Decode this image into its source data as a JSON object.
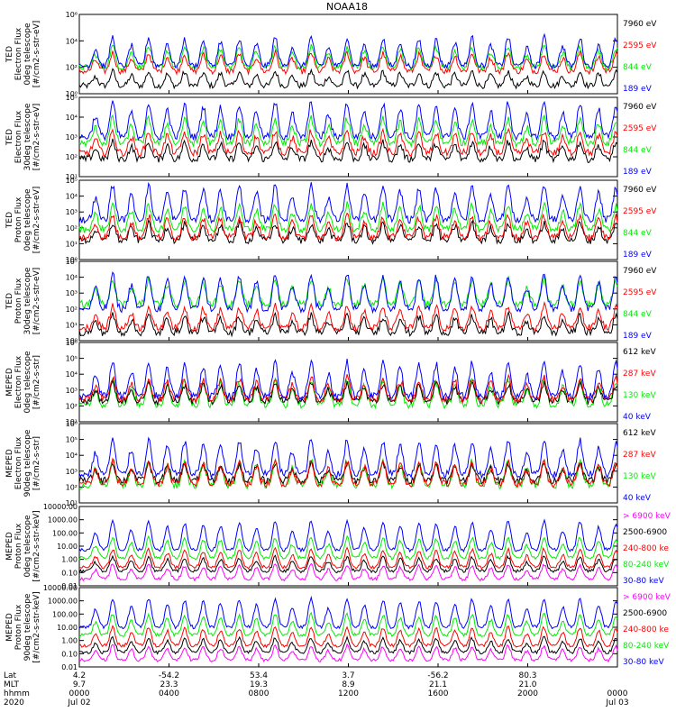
{
  "title": "NOAA18",
  "colors": {
    "black": "#000000",
    "blue": "#0000ff",
    "red": "#ff0000",
    "green": "#00ee00",
    "magenta": "#ff00ff"
  },
  "chart_data": [
    {
      "type": "line",
      "panel": "TED electron flux, 0 deg telescope",
      "ylabel": [
        "TED",
        "Electron Flux",
        "0deg telescope",
        "[#/cm2-s-str-eV]"
      ],
      "scale": "log",
      "ylim": [
        1,
        1000000
      ],
      "yticks": [
        "10⁰",
        "10²",
        "10⁴",
        "10⁶"
      ],
      "legend": [
        {
          "label": "7960 eV",
          "color": "black"
        },
        {
          "label": "2595 eV",
          "color": "red"
        },
        {
          "label": "844 eV",
          "color": "green"
        },
        {
          "label": "189 eV",
          "color": "blue"
        }
      ],
      "series_levels_log10": {
        "blue": 2.1,
        "green": 2.0,
        "red": 1.7,
        "black": 0.6
      }
    },
    {
      "type": "line",
      "panel": "TED electron flux, 30 deg telescope",
      "ylabel": [
        "TED",
        "Electron Flux",
        "30deg telescope",
        "[#/cm2-s-str-eV]"
      ],
      "scale": "log",
      "ylim": [
        1,
        100000
      ],
      "yticks": [
        "10¹",
        "10²",
        "10³",
        "10⁴",
        "10⁵"
      ],
      "legend": [
        {
          "label": "7960 eV",
          "color": "black"
        },
        {
          "label": "2595 eV",
          "color": "red"
        },
        {
          "label": "844 eV",
          "color": "green"
        },
        {
          "label": "189 eV",
          "color": "blue"
        }
      ],
      "series_levels_log10": {
        "blue": 2.5,
        "green": 2.1,
        "red": 1.5,
        "black": 1.1
      }
    },
    {
      "type": "line",
      "panel": "TED proton flux, 0 deg telescope",
      "ylabel": [
        "TED",
        "Proton Flux",
        "0deg telescope",
        "[#/cm2-s-str-eV]"
      ],
      "scale": "log",
      "ylim": [
        1,
        100000
      ],
      "yticks": [
        "10⁰",
        "10¹",
        "10²",
        "10³",
        "10⁴",
        "10⁵"
      ],
      "legend": [
        {
          "label": "7960 eV",
          "color": "black"
        },
        {
          "label": "2595 eV",
          "color": "red"
        },
        {
          "label": "844 eV",
          "color": "green"
        },
        {
          "label": "189 eV",
          "color": "blue"
        }
      ],
      "series_levels_log10": {
        "blue": 2.5,
        "green": 1.9,
        "red": 1.4,
        "black": 1.2
      }
    },
    {
      "type": "line",
      "panel": "TED proton flux, 30 deg telescope",
      "ylabel": [
        "TED",
        "Proton Flux",
        "30deg telescope",
        "[#/cm2-s-str-eV]"
      ],
      "scale": "log",
      "ylim": [
        1,
        100000
      ],
      "yticks": [
        "10⁰",
        "10¹",
        "10²",
        "10³",
        "10⁴",
        "10⁵"
      ],
      "legend": [
        {
          "label": "7960 eV",
          "color": "black"
        },
        {
          "label": "2595 eV",
          "color": "red"
        },
        {
          "label": "844 eV",
          "color": "green"
        },
        {
          "label": "189 eV",
          "color": "blue"
        }
      ],
      "series_levels_log10": {
        "blue": 2.0,
        "green": 2.3,
        "red": 0.8,
        "black": 0.5
      }
    },
    {
      "type": "line",
      "panel": "MEPED electron flux, 0 deg telescope",
      "ylabel": [
        "MEPED",
        "Electron Flux",
        "0deg telescope",
        "[#/cm2-s-str]"
      ],
      "scale": "log",
      "ylim": [
        10,
        1000000
      ],
      "yticks": [
        "10¹",
        "10²",
        "10³",
        "10⁴",
        "10⁵",
        "10⁶"
      ],
      "legend": [
        {
          "label": "612 keV",
          "color": "black"
        },
        {
          "label": "287 keV",
          "color": "red"
        },
        {
          "label": "130 keV",
          "color": "green"
        },
        {
          "label": "40 keV",
          "color": "blue"
        }
      ],
      "series_levels_log10": {
        "blue": 2.6,
        "red": 2.4,
        "black": 2.3,
        "green": 2.05
      }
    },
    {
      "type": "line",
      "panel": "MEPED electron flux, 90 deg telescope",
      "ylabel": [
        "MEPED",
        "Electron Flux",
        "90deg telescope",
        "[#/cm2-s-str]"
      ],
      "scale": "log",
      "ylim": [
        10,
        1000000
      ],
      "yticks": [
        "10¹",
        "10²",
        "10³",
        "10⁴",
        "10⁵",
        "10⁶"
      ],
      "legend": [
        {
          "label": "612 keV",
          "color": "black"
        },
        {
          "label": "287 keV",
          "color": "red"
        },
        {
          "label": "130 keV",
          "color": "green"
        },
        {
          "label": "40 keV",
          "color": "blue"
        }
      ],
      "series_levels_log10": {
        "blue": 2.8,
        "red": 2.2,
        "black": 2.4,
        "green": 2.1
      }
    },
    {
      "type": "line",
      "panel": "MEPED proton flux, 0 deg telescope",
      "ylabel": [
        "MEPED",
        "Proton Flux",
        "0deg telescope",
        "[#/cm2-s-str-keV]"
      ],
      "scale": "log",
      "ylim": [
        0.01,
        10000
      ],
      "yticks": [
        "0.01",
        "0.10",
        "1.00",
        "10.00",
        "100.00",
        "1000.00",
        "10000.00"
      ],
      "legend": [
        {
          "label": "> 6900 keV",
          "color": "magenta"
        },
        {
          "label": "2500-6900",
          "color": "black"
        },
        {
          "label": "240-800 ke",
          "color": "red"
        },
        {
          "label": "80-240 keV",
          "color": "green"
        },
        {
          "label": "30-80 keV",
          "color": "blue"
        }
      ],
      "series_levels_log10": {
        "blue": 0.7,
        "green": 0.1,
        "red": -0.6,
        "black": -0.9,
        "magenta": -1.5
      }
    },
    {
      "type": "line",
      "panel": "MEPED proton flux, 90 deg telescope",
      "ylabel": [
        "MEPED",
        "Proton Flux",
        "90deg telescope",
        "[#/cm2-s-str-keV]"
      ],
      "scale": "log",
      "ylim": [
        0.01,
        10000
      ],
      "yticks": [
        "0.01",
        "0.10",
        "1.00",
        "10.00",
        "100.00",
        "1000.00",
        "10000.00"
      ],
      "legend": [
        {
          "label": "> 6900 keV",
          "color": "magenta"
        },
        {
          "label": "2500-6900",
          "color": "black"
        },
        {
          "label": "240-800 ke",
          "color": "red"
        },
        {
          "label": "80-240 keV",
          "color": "green"
        },
        {
          "label": "30-80 keV",
          "color": "blue"
        }
      ],
      "series_levels_log10": {
        "blue": 1.0,
        "green": 0.4,
        "red": -0.4,
        "black": -0.9,
        "magenta": -1.5
      }
    }
  ],
  "time_axis": {
    "row_labels": [
      "Lat",
      "MLT",
      "hhmm",
      "2020"
    ],
    "ticks": [
      {
        "hour": 0,
        "lat": "4.2",
        "mlt": "9.7",
        "hhmm": "0000",
        "date": "Jul 02"
      },
      {
        "hour": 4,
        "lat": "-54.2",
        "mlt": "23.3",
        "hhmm": "0400",
        "date": ""
      },
      {
        "hour": 8,
        "lat": "53.4",
        "mlt": "19.3",
        "hhmm": "0800",
        "date": ""
      },
      {
        "hour": 12,
        "lat": "3.7",
        "mlt": "8.9",
        "hhmm": "1200",
        "date": ""
      },
      {
        "hour": 16,
        "lat": "-56.2",
        "mlt": "21.1",
        "hhmm": "1600",
        "date": ""
      },
      {
        "hour": 20,
        "lat": "80.3",
        "mlt": "21.0",
        "hhmm": "2000",
        "date": ""
      },
      {
        "hour": 24,
        "lat": "",
        "mlt": "",
        "hhmm": "0000",
        "date": "Jul 03"
      }
    ],
    "range_hours": [
      0,
      24
    ]
  }
}
